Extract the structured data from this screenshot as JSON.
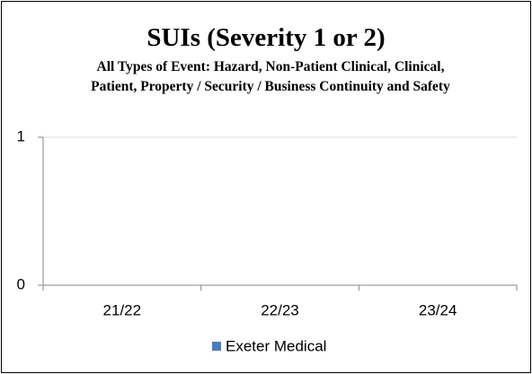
{
  "chart_data": {
    "type": "bar",
    "title": "SUIs (Severity 1 or 2)",
    "subtitle": "All Types of Event: Hazard, Non-Patient Clinical, Clinical, Patient, Property / Security / Business Continuity and Safety",
    "categories": [
      "21/22",
      "22/23",
      "23/24"
    ],
    "series": [
      {
        "name": "Exeter Medical",
        "color": "#4a7ebb",
        "values": [
          0,
          0,
          0
        ]
      }
    ],
    "ylim": [
      0,
      1
    ],
    "yticks": [
      0,
      1
    ],
    "grid": true,
    "legend": "bottom"
  }
}
